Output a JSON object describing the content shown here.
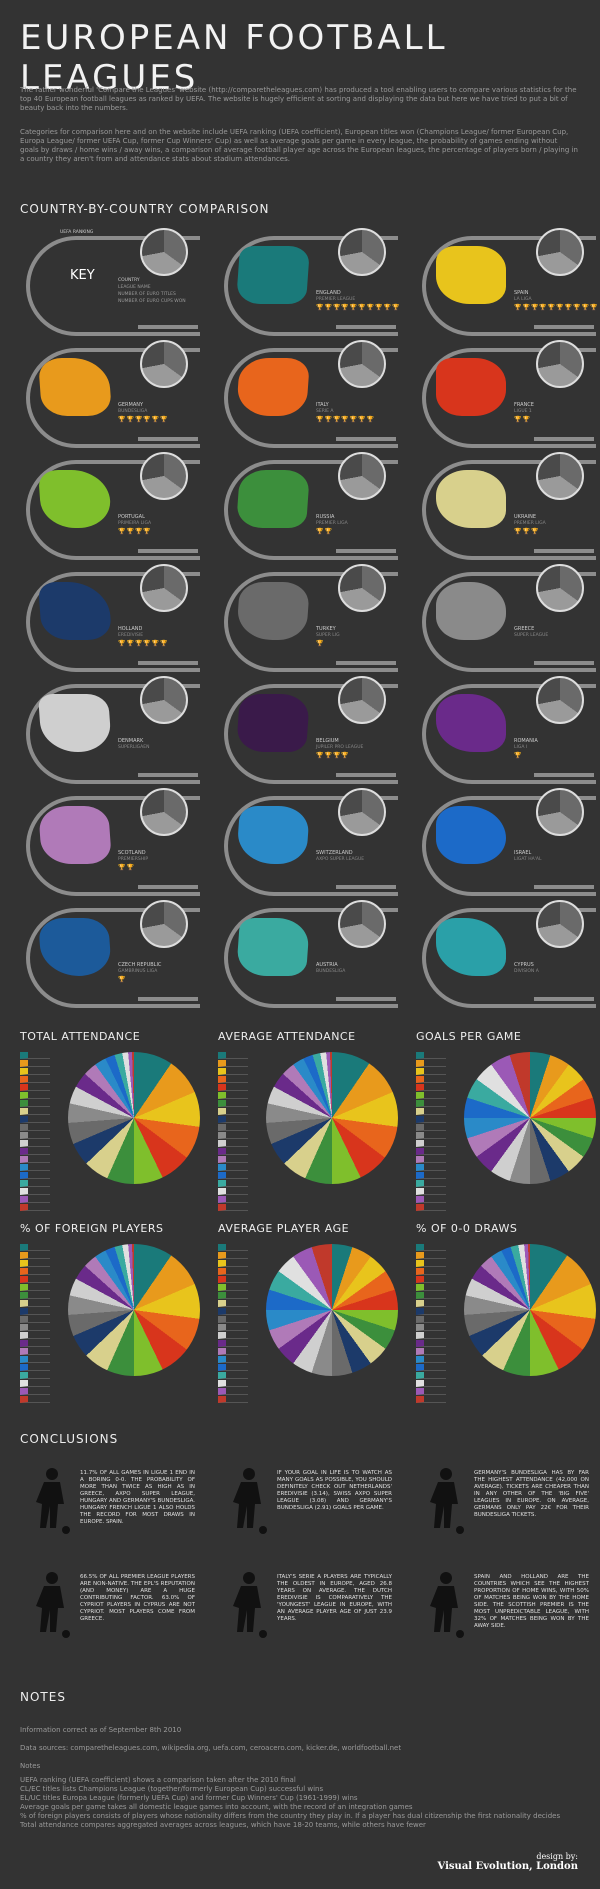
{
  "header": {
    "title": "EUROPEAN FOOTBALL LEAGUES",
    "intro_1": "The rather wonderful 'Compare the Leagues' website (http://comparetheleagues.com) has produced a tool enabling users to compare various statistics for the top 40 European football leagues as ranked by UEFA. The website is hugely efficient at sorting and displaying the data but here we have tried to put a bit of beauty back into the numbers.",
    "intro_2": "Categories for comparison here and on the website include UEFA ranking (UEFA coefficient), European titles won (Champions League/ former European Cup, Europa League/ former UEFA Cup, former Cup Winners' Cup) as well as average goals per game in every league, the probability of games ending without goals by draws / home wins / away wins, a comparison of average football player age across the European leagues, the percentage of players born / playing in a country they aren't from and attendance stats about stadium attendances."
  },
  "comparison": {
    "heading": "COUNTRY-BY-COUNTRY COMPARISON",
    "key": {
      "label": "KEY",
      "arc_label": "UEFA RANKING",
      "lines": [
        "COUNTRY",
        "LEAGUE NAME",
        "NUMBER OF EURO TITLES",
        "NUMBER OF EURO CUPS WON"
      ]
    },
    "countries": [
      {
        "name": "ENGLAND",
        "league": "PREMIER LEAGUE",
        "cups": "🏆🏆🏆🏆🏆🏆🏆🏆🏆🏆",
        "color": "#1a7a7a"
      },
      {
        "name": "SPAIN",
        "league": "LA LIGA",
        "cups": "🏆🏆🏆🏆🏆🏆🏆🏆🏆🏆",
        "color": "#e8c41c"
      },
      {
        "name": "GERMANY",
        "league": "BUNDESLIGA",
        "cups": "🏆🏆🏆🏆🏆🏆",
        "color": "#e89a1c"
      },
      {
        "name": "ITALY",
        "league": "SERIE A",
        "cups": "🏆🏆🏆🏆🏆🏆🏆",
        "color": "#e8651c"
      },
      {
        "name": "FRANCE",
        "league": "LIGUE 1",
        "cups": "🏆🏆",
        "color": "#d8351c"
      },
      {
        "name": "PORTUGAL",
        "league": "PRIMEIRA LIGA",
        "cups": "🏆🏆🏆🏆",
        "color": "#7fbf2c"
      },
      {
        "name": "RUSSIA",
        "league": "PREMIER LIGA",
        "cups": "🏆🏆",
        "color": "#3c8f3c"
      },
      {
        "name": "UKRAINE",
        "league": "PREMIER LIGA",
        "cups": "🏆🏆🏆",
        "color": "#d8d08c"
      },
      {
        "name": "HOLLAND",
        "league": "EREDIVISIE",
        "cups": "🏆🏆🏆🏆🏆🏆",
        "color": "#1c3a6a"
      },
      {
        "name": "TURKEY",
        "league": "SUPER LIG",
        "cups": "🏆",
        "color": "#6a6a6a"
      },
      {
        "name": "GREECE",
        "league": "SUPER LEAGUE",
        "cups": "",
        "color": "#8a8a8a"
      },
      {
        "name": "DENMARK",
        "league": "SUPERLIGAEN",
        "cups": "",
        "color": "#cfcfcf"
      },
      {
        "name": "BELGIUM",
        "league": "JUPILER PRO LEAGUE",
        "cups": "🏆🏆🏆🏆",
        "color": "#3a1a4a"
      },
      {
        "name": "ROMANIA",
        "league": "LIGA I",
        "cups": "🏆",
        "color": "#6a2a8a"
      },
      {
        "name": "SCOTLAND",
        "league": "PREMIERSHIP",
        "cups": "🏆🏆",
        "color": "#b07ab8"
      },
      {
        "name": "SWITZERLAND",
        "league": "AXPO SUPER LEAGUE",
        "cups": "",
        "color": "#2a8ac8"
      },
      {
        "name": "ISRAEL",
        "league": "LIGAT HA'AL",
        "cups": "",
        "color": "#1c6ac8"
      },
      {
        "name": "CZECH REPUBLIC",
        "league": "GAMBRINUS LIGA",
        "cups": "🏆",
        "color": "#1c5a9a"
      },
      {
        "name": "AUSTRIA",
        "league": "BUNDESLIGA",
        "cups": "",
        "color": "#3aaaa0"
      },
      {
        "name": "CYPRUS",
        "league": "DIVISION A",
        "cups": "",
        "color": "#2aa0a8"
      }
    ]
  },
  "charts": [
    {
      "title": "TOTAL ATTENDANCE"
    },
    {
      "title": "AVERAGE ATTENDANCE"
    },
    {
      "title": "GOALS PER GAME"
    },
    {
      "title": "% OF FOREIGN PLAYERS"
    },
    {
      "title": "AVERAGE PLAYER AGE"
    },
    {
      "title": "% OF 0-0 DRAWS"
    }
  ],
  "palette": [
    "#1a7a7a",
    "#e89a1c",
    "#e8c41c",
    "#e8651c",
    "#d8351c",
    "#7fbf2c",
    "#3c8f3c",
    "#d8d08c",
    "#1c3a6a",
    "#6a6a6a",
    "#8a8a8a",
    "#cfcfcf",
    "#6a2a8a",
    "#b07ab8",
    "#2a8ac8",
    "#1c6ac8",
    "#3aaaa0",
    "#e0e0e0",
    "#9b59b6",
    "#c0392b"
  ],
  "conclusions": {
    "heading": "CONCLUSIONS",
    "items": [
      "11.7% OF ALL GAMES IN LIGUE 1 END IN A BORING 0-0. THE PROBABILITY OF MORE THAN TWICE AS HIGH AS IN GREECE, AXPO SUPER LEAGUE, HUNGARY AND GERMANY'S BUNDESLIGA. HUNGARY FRENCH LIGUE 1 ALSO HOLDS THE RECORD FOR MOST DRAWS IN EUROPE. SPAIN.",
      "IF YOUR GOAL IN LIFE IS TO WATCH AS MANY GOALS AS POSSIBLE, YOU SHOULD DEFINITELY CHECK OUT NETHERLANDS' EREDIVISIE (3.14), SWISS AXPO SUPER LEAGUE (3.08) AND GERMANY'S BUNDESLIGA (2.91) GOALS PER GAME.",
      "GERMANY'S BUNDESLIGA HAS BY FAR THE HIGHEST ATTENDANCE (42,000 ON AVERAGE). TICKETS ARE CHEAPER THAN IN ANY OTHER OF THE 'BIG FIVE' LEAGUES IN EUROPE. ON AVERAGE, GERMANS ONLY PAY 22€ FOR THEIR BUNDESLIGA TICKETS.",
      "66.5% OF ALL PREMIER LEAGUE PLAYERS ARE NON-NATIVE. THE EPL'S REPUTATION (AND MONEY) ARE A HUGE CONTRIBUTING FACTOR. 63.0% OF CYPRIOT PLAYERS IN CYPRUS ARE NOT CYPRIOT. MOST PLAYERS COME FROM GREECE.",
      "ITALY'S SERIE A PLAYERS ARE TYPICALLY THE OLDEST IN EUROPE, AGED 26.8 YEARS ON AVERAGE. THE DUTCH EREDIVISIE IS COMPARATIVELY THE 'YOUNGEST' LEAGUE IN EUROPE, WITH AN AVERAGE PLAYER AGE OF JUST 23.9 YEARS.",
      "SPAIN AND HOLLAND ARE THE COUNTRIES WHICH SEE THE HIGHEST PROPORTION OF HOME WINS, WITH 50% OF MATCHES BEING WON BY THE HOME SIDE. THE SCOTTISH PREMIER IS THE MOST UNPREDICTABLE LEAGUE, WITH 32% OF MATCHES BEING WON BY THE AWAY SIDE."
    ]
  },
  "notes": {
    "heading": "NOTES",
    "line1": "Information correct as of September 8th 2010",
    "line2": "Data sources: comparetheleagues.com, wikipedia.org, uefa.com, ceroacero.com, kicker.de, worldfootball.net",
    "sub": "Notes",
    "bullets": [
      "UEFA ranking (UEFA coefficient) shows a comparison taken after the 2010 final",
      "CL/EC titles lists Champions League (together/formerly European Cup) successful wins",
      "EL/UC titles Europa League (formerly UEFA Cup) and former Cup Winners' Cup (1961-1999) wins",
      "Average goals per game takes all domestic league games into account, with the record of an integration games",
      "% of foreign players consists of players whose nationality differs from the country they play in. If a player has dual citizenship the first nationality decides",
      "Total attendance compares aggregated averages across leagues, which have 18-20 teams, while others have fewer"
    ]
  },
  "credit": {
    "by": "design by:",
    "studio": "Visual Evolution, London"
  }
}
